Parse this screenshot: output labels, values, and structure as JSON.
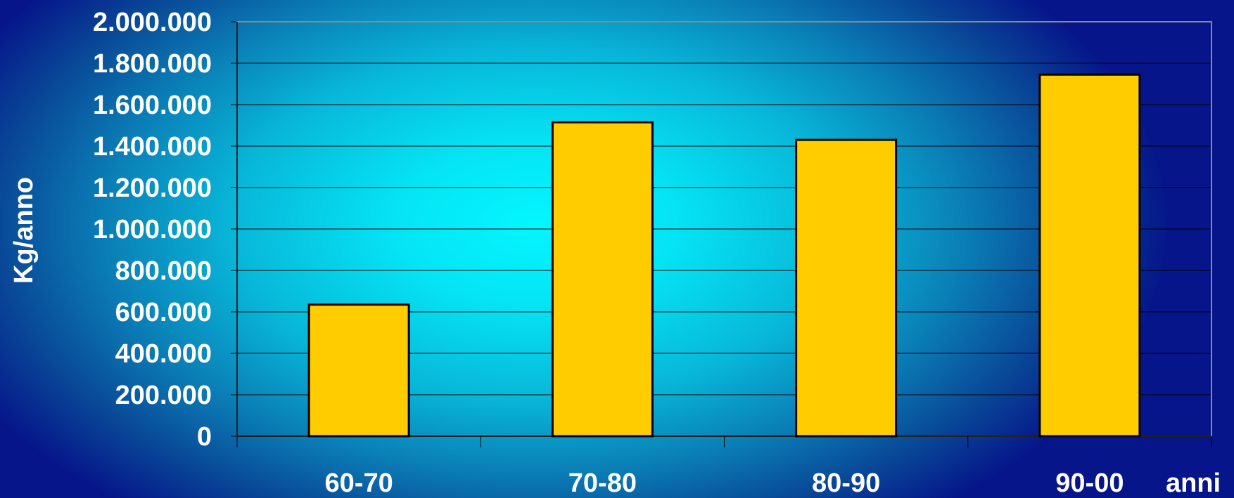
{
  "chart_data": {
    "type": "bar",
    "categories": [
      "60-70",
      "70-80",
      "80-90",
      "90-00"
    ],
    "series": [
      {
        "values": [
          635000,
          1515000,
          1430000,
          1745000
        ]
      }
    ],
    "ylabel": "Kg/anno",
    "xlabel": "anni",
    "ylim": [
      0,
      2000000
    ],
    "yticks": [
      0,
      200000,
      400000,
      600000,
      800000,
      1000000,
      1200000,
      1400000,
      1600000,
      1800000,
      2000000
    ],
    "ytick_labels": [
      "0",
      "200.000",
      "400.000",
      "600.000",
      "800.000",
      "1.000.000",
      "1.200.000",
      "1.400.000",
      "1.600.000",
      "1.800.000",
      "2.000.000"
    ],
    "grid": true,
    "legend": "none",
    "colors": {
      "bar_fill": "#ffcc00",
      "bar_stroke": "#000000",
      "gridline": "#000000",
      "text": "#ffffff"
    }
  }
}
